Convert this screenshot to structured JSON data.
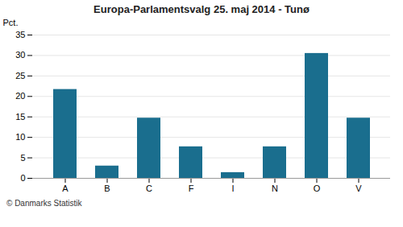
{
  "chart_data": {
    "type": "bar",
    "title": "Europa-Parlamentsvalg 25. maj 2014 - Tunø",
    "categories": [
      "A",
      "B",
      "C",
      "F",
      "I",
      "N",
      "O",
      "V"
    ],
    "values": [
      21.7,
      3.0,
      14.7,
      7.7,
      1.4,
      7.7,
      30.5,
      14.7
    ],
    "color": "#1a6e8e",
    "ylabel": "Pct.",
    "ylim": [
      0,
      35
    ],
    "yticks": [
      0,
      5,
      10,
      15,
      20,
      25,
      30,
      35
    ],
    "grid": true,
    "annotations": [
      "© Danmarks Statistik"
    ]
  }
}
